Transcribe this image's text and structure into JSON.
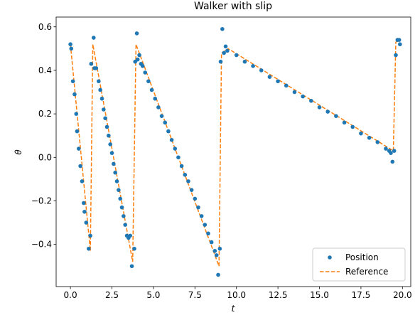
{
  "chart_data": {
    "type": "scatter",
    "title": "Walker with slip",
    "xlabel": "t",
    "ylabel": "θ",
    "xlim": [
      -0.86,
      20.5
    ],
    "ylim": [
      -0.594,
      0.645
    ],
    "xticks": [
      {
        "value": 0,
        "label": "0.0"
      },
      {
        "value": 2.5,
        "label": "2.5"
      },
      {
        "value": 5,
        "label": "5.0"
      },
      {
        "value": 7.5,
        "label": "7.5"
      },
      {
        "value": 10,
        "label": "10.0"
      },
      {
        "value": 12.5,
        "label": "12.5"
      },
      {
        "value": 15,
        "label": "15.0"
      },
      {
        "value": 17.5,
        "label": "17.5"
      },
      {
        "value": 20,
        "label": "20.0"
      }
    ],
    "yticks": [
      {
        "value": -0.4,
        "label": "−0.4"
      },
      {
        "value": -0.2,
        "label": "−0.2"
      },
      {
        "value": 0,
        "label": "0.0"
      },
      {
        "value": 0.2,
        "label": "0.2"
      },
      {
        "value": 0.4,
        "label": "0.4"
      },
      {
        "value": 0.6,
        "label": "0.6"
      }
    ],
    "legend": "lower right",
    "series": [
      {
        "name": "Position",
        "color": "#1f77b4",
        "style": "markers",
        "x": [
          0,
          0.05,
          0.15,
          0.25,
          0.35,
          0.4,
          0.5,
          0.6,
          0.7,
          0.8,
          0.85,
          0.95,
          1.1,
          1.2,
          1.25,
          1.4,
          1.45,
          1.55,
          1.7,
          1.8,
          1.9,
          2.0,
          2.1,
          2.2,
          2.3,
          2.4,
          2.5,
          2.6,
          2.7,
          2.8,
          2.9,
          3.0,
          3.1,
          3.2,
          3.3,
          3.4,
          3.5,
          3.6,
          3.7,
          3.85,
          3.9,
          4.0,
          4.05,
          4.15,
          4.25,
          4.35,
          4.5,
          4.7,
          4.9,
          5.1,
          5.3,
          5.5,
          5.7,
          5.9,
          6.1,
          6.3,
          6.5,
          6.7,
          6.9,
          7.1,
          7.3,
          7.5,
          7.7,
          7.9,
          8.1,
          8.3,
          8.5,
          8.7,
          8.8,
          8.9,
          9.0,
          9.05,
          9.15,
          9.25,
          9.35,
          9.45,
          10,
          10.5,
          11,
          11.5,
          12,
          12.5,
          13,
          13.5,
          14,
          14.5,
          15,
          15.5,
          16,
          16.5,
          17,
          17.5,
          18,
          18.5,
          19,
          19.2,
          19.3,
          19.4,
          19.5,
          19.6,
          19.7,
          19.8,
          19.85
        ],
        "values": [
          0.52,
          0.5,
          0.35,
          0.29,
          0.2,
          0.12,
          0.04,
          -0.04,
          -0.11,
          -0.21,
          -0.25,
          -0.3,
          -0.42,
          -0.36,
          0.43,
          0.55,
          0.41,
          0.41,
          0.35,
          0.31,
          0.27,
          0.22,
          0.18,
          0.14,
          0.1,
          0.06,
          0.02,
          -0.03,
          -0.07,
          -0.11,
          -0.15,
          -0.19,
          -0.23,
          -0.27,
          -0.31,
          -0.36,
          -0.37,
          -0.36,
          -0.5,
          -0.42,
          0.44,
          0.57,
          0.45,
          0.47,
          0.43,
          0.42,
          0.39,
          0.35,
          0.31,
          0.27,
          0.23,
          0.19,
          0.16,
          0.12,
          0.08,
          0.04,
          0.0,
          -0.04,
          -0.08,
          -0.11,
          -0.15,
          -0.19,
          -0.23,
          -0.27,
          -0.31,
          -0.35,
          -0.39,
          -0.43,
          -0.45,
          -0.54,
          -0.42,
          0.44,
          0.59,
          0.48,
          0.51,
          0.49,
          0.47,
          0.44,
          0.42,
          0.4,
          0.37,
          0.35,
          0.33,
          0.3,
          0.28,
          0.26,
          0.23,
          0.21,
          0.19,
          0.16,
          0.14,
          0.11,
          0.09,
          0.07,
          0.04,
          0.03,
          0.02,
          -0.02,
          0.03,
          0.47,
          0.54,
          0.54,
          0.52
        ]
      },
      {
        "name": "Reference",
        "color": "#ff7f0e",
        "style": "dashed",
        "x": [
          0,
          1.2,
          1.35,
          3.75,
          3.95,
          8.95,
          9.1,
          9.5,
          19.45,
          19.6,
          19.85
        ],
        "values": [
          0.52,
          -0.43,
          0.52,
          -0.48,
          0.52,
          -0.5,
          0.48,
          0.5,
          0.03,
          0.53,
          0.54
        ]
      }
    ]
  }
}
